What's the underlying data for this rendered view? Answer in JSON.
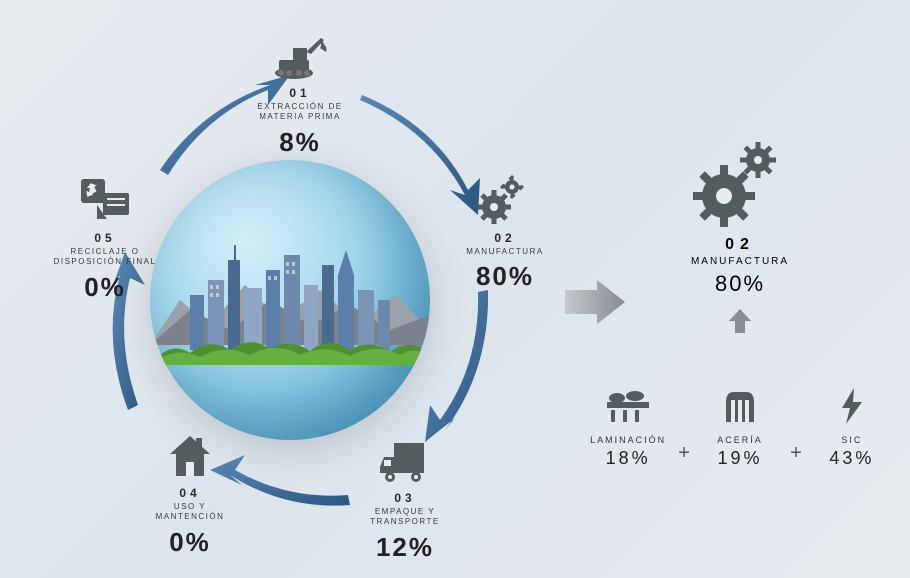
{
  "type": "infographic",
  "colors": {
    "icon": "#555c60",
    "arrow": "#3b6a9a",
    "text": "#2a2a2a",
    "globe_light": "#d4eef9",
    "globe_dark": "#4a9cc2",
    "grass": "#5aa033",
    "mountain": "#8a8d95"
  },
  "stages": {
    "s1": {
      "num": "01",
      "label": "EXTRACCIÓN DE\nMATERIA PRIMA",
      "pct": "8%"
    },
    "s2": {
      "num": "02",
      "label": "MANUFACTURA",
      "pct": "80%"
    },
    "s3": {
      "num": "03",
      "label": "EMPAQUE Y\nTRANSPORTE",
      "pct": "12%"
    },
    "s4": {
      "num": "04",
      "label": "USO Y\nMANTENCIÓN",
      "pct": "0%"
    },
    "s5": {
      "num": "05",
      "label": "RECICLAJE O\nDISPOSICIÓN FINAL",
      "pct": "0%"
    }
  },
  "detail": {
    "num": "02",
    "label": "MANUFACTURA",
    "pct": "80%",
    "items": [
      {
        "label": "LAMINACIÓN",
        "pct": "18%"
      },
      {
        "label": "ACERÍA",
        "pct": "19%"
      },
      {
        "label": "SIC",
        "pct": "43%"
      }
    ],
    "plus": "+"
  }
}
